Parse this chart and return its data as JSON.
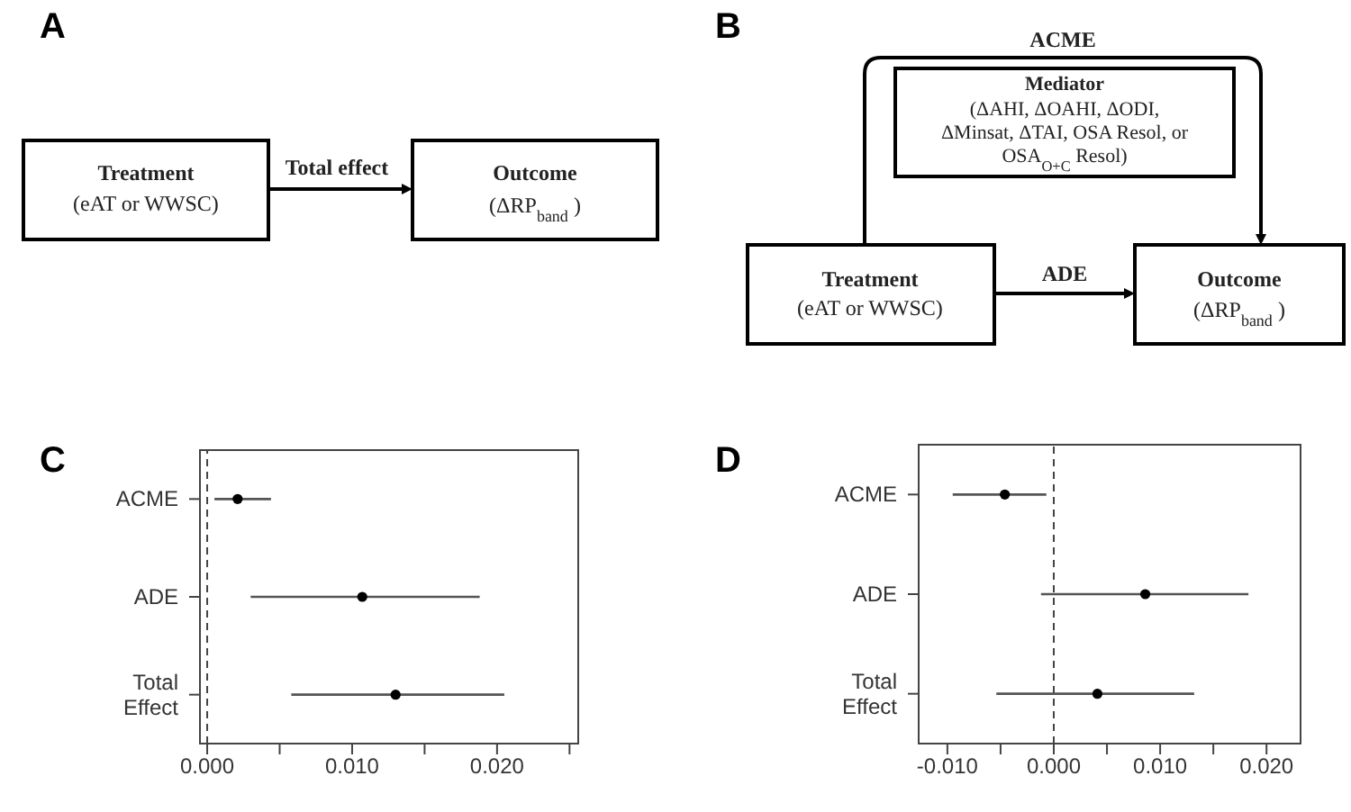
{
  "chart_data": [
    {
      "type": "other",
      "title": "A",
      "annotations": [
        "Treatment",
        "(eAT or WWSC)",
        "Total effect",
        "Outcome",
        "(ΔRP$_{band}$ )"
      ]
    },
    {
      "type": "other",
      "title": "B",
      "annotations": [
        "ACME",
        "Mediator",
        "(ΔAHI, ΔOAHI, ΔODI,",
        "ΔMinsat, ΔTAI, OSA Resol, or",
        "OSA$_{O+C}$ Resol)",
        "Treatment",
        "(eAT or WWSC)",
        "ADE",
        "Outcome",
        "(ΔRP$_{band}$ )"
      ]
    },
    {
      "type": "scatter",
      "title": "C",
      "orientation": "horizontal",
      "categories": [
        "ACME",
        "ADE",
        "Total Effect"
      ],
      "values": [
        0.0021,
        0.0107,
        0.013
      ],
      "errors": [
        [
          0.0005,
          0.0044
        ],
        [
          0.003,
          0.0188
        ],
        [
          0.0058,
          0.0205
        ]
      ],
      "color": "#000000",
      "marker": "circle",
      "xlim": [
        -0.0005,
        0.0256
      ],
      "xticks": [
        {
          "value": 0,
          "label": "0.000"
        },
        {
          "value": 0.005,
          "label": null
        },
        {
          "value": 0.01,
          "label": "0.010"
        },
        {
          "value": 0.015,
          "label": null
        },
        {
          "value": 0.02,
          "label": "0.020"
        },
        {
          "value": 0.025,
          "label": null
        }
      ],
      "ref_lines": [
        {
          "axis": "x",
          "value": 0,
          "color": "#444444",
          "line_style": "dashed"
        }
      ]
    },
    {
      "type": "scatter",
      "title": "D",
      "orientation": "horizontal",
      "categories": [
        "ACME",
        "ADE",
        "Total Effect"
      ],
      "values": [
        -0.0046,
        0.0086,
        0.0041
      ],
      "errors": [
        [
          -0.0095,
          -0.0007
        ],
        [
          -0.0012,
          0.0183
        ],
        [
          -0.0054,
          0.0132
        ]
      ],
      "color": "#000000",
      "marker": "circle",
      "xlim": [
        -0.0127,
        0.0232
      ],
      "xticks": [
        {
          "value": -0.01,
          "label": "-0.010"
        },
        {
          "value": -0.005,
          "label": null
        },
        {
          "value": 0,
          "label": "0.000"
        },
        {
          "value": 0.005,
          "label": null
        },
        {
          "value": 0.01,
          "label": "0.010"
        },
        {
          "value": 0.015,
          "label": null
        },
        {
          "value": 0.02,
          "label": "0.020"
        }
      ],
      "ref_lines": [
        {
          "axis": "x",
          "value": 0,
          "color": "#444444",
          "line_style": "dashed"
        }
      ]
    }
  ]
}
